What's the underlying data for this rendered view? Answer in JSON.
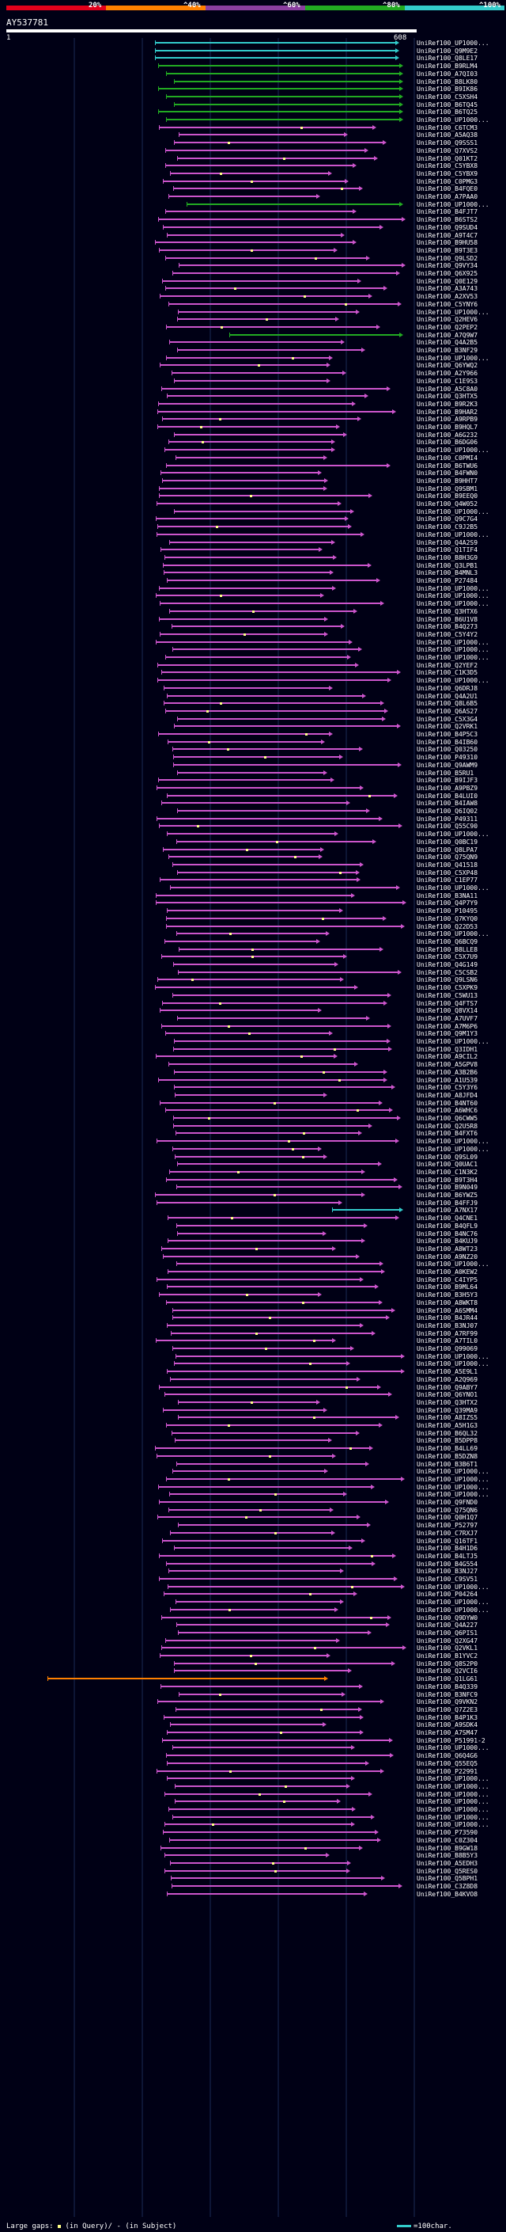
{
  "legend": {
    "ticks": [
      "20%",
      "^40%",
      "^60%",
      "^80%",
      "^100%"
    ],
    "colors": [
      "#e3001b",
      "#ff8000",
      "#8b3fa0",
      "#22aa22",
      "#33cccc"
    ]
  },
  "query": {
    "id": "AY537781",
    "start": "1",
    "end": "608"
  },
  "colors": {
    "cyan": "#33cccc",
    "green": "#22aa22",
    "magenta": "#cc55cc",
    "orange": "#ff8000",
    "gap": "#ffff88"
  },
  "hits": [
    "UniRef100_UP1000...",
    "UniRef100_Q9M9E2",
    "UniRef100_Q8LE17",
    "UniRef100_B9RLM4",
    "UniRef100_A7QI03",
    "UniRef100_B8LK80",
    "UniRef100_B9IK86",
    "UniRef100_C5XSH4",
    "UniRef100_B6TQ45",
    "UniRef100_B6TQ25",
    "UniRef100_UP1000...",
    "UniRef100_C6TCM3",
    "UniRef100_A5AQ38",
    "UniRef100_Q9SSS1",
    "UniRef100_Q7XVS2",
    "UniRef100_Q01KT2",
    "UniRef100_C5YBX8",
    "UniRef100_C5YBX9",
    "UniRef100_C0PMG3",
    "UniRef100_B4FQE0",
    "UniRef100_A7PAA0",
    "UniRef100_UP1000...",
    "UniRef100_B4FJT7",
    "UniRef100_B6STS2",
    "UniRef100_Q9SUD4",
    "UniRef100_A9T4C7",
    "UniRef100_B9HU58",
    "UniRef100_B9T3E3",
    "UniRef100_Q9LSD2",
    "UniRef100_Q9VY34",
    "UniRef100_Q6X925",
    "UniRef100_Q0E129",
    "UniRef100_A3A743",
    "UniRef100_A2XV53",
    "UniRef100_C5YNY6",
    "UniRef100_UP1000...",
    "UniRef100_Q2HEV6",
    "UniRef100_Q2PEP2",
    "UniRef100_A7Q9W7",
    "UniRef100_Q4A2B5",
    "UniRef100_B3NF29",
    "UniRef100_UP1000...",
    "UniRef100_Q6YWQ2",
    "UniRef100_A2Y966",
    "UniRef100_C1E9S3",
    "UniRef100_A5C8A0",
    "UniRef100_Q3HTX5",
    "UniRef100_B9R2K3",
    "UniRef100_B9HAR2",
    "UniRef100_A9RPB9",
    "UniRef100_B9HQL7",
    "UniRef100_A6G232",
    "UniRef100_B6DG06",
    "UniRef100_UP1000...",
    "UniRef100_C0PMI4",
    "UniRef100_B6TWU6",
    "UniRef100_B4FWN0",
    "UniRef100_B9HHT7",
    "UniRef100_Q9SBM1",
    "UniRef100_B9EEQ0",
    "UniRef100_Q4W052",
    "UniRef100_UP1000...",
    "UniRef100_Q9C7G4",
    "UniRef100_C9J2B5",
    "UniRef100_UP1000...",
    "UniRef100_Q4A2S9",
    "UniRef100_Q1TIF4",
    "UniRef100_B8H3G9",
    "UniRef100_Q3LPB1",
    "UniRef100_B4MNL3",
    "UniRef100_P27484",
    "UniRef100_UP1000...",
    "UniRef100_UP1000...",
    "UniRef100_UP1000...",
    "UniRef100_Q3HTX6",
    "UniRef100_B6U1V8",
    "UniRef100_B4Q273",
    "UniRef100_C5Y4Y2",
    "UniRef100_UP1000...",
    "UniRef100_UP1000...",
    "UniRef100_UP1000...",
    "UniRef100_Q2YEF2",
    "UniRef100_C1K3D5",
    "UniRef100_UP1000...",
    "UniRef100_Q6DRJ8",
    "UniRef100_Q4A2U1",
    "UniRef100_Q8L6B5",
    "UniRef100_Q6AS27",
    "UniRef100_C5X3G4",
    "UniRef100_Q2VRK1",
    "UniRef100_B4P5C3",
    "UniRef100_B4IB60",
    "UniRef100_Q03250",
    "UniRef100_P49310",
    "UniRef100_Q9AWM9",
    "UniRef100_B5RU1",
    "UniRef100_B9IJF3",
    "UniRef100_A9PBZ9",
    "UniRef100_B4LUI0",
    "UniRef100_B4IAW8",
    "UniRef100_Q6IQ02",
    "UniRef100_P49311",
    "UniRef100_Q55C90",
    "UniRef100_UP1000...",
    "UniRef100_Q0BC19",
    "UniRef100_Q8LPA7",
    "UniRef100_Q75QN9",
    "UniRef100_Q41518",
    "UniRef100_C5XP48",
    "UniRef100_C1EP77",
    "UniRef100_UP1000...",
    "UniRef100_B3NA11",
    "UniRef100_Q4P7Y9",
    "UniRef100_P10495",
    "UniRef100_Q7KYQ0",
    "UniRef100_Q22D53",
    "UniRef100_UP1000...",
    "UniRef100_Q6BCQ9",
    "UniRef100_B8LLE8",
    "UniRef100_C5X7U9",
    "UniRef100_Q4G149",
    "UniRef100_C5CSB2",
    "UniRef100_Q9LSN6",
    "UniRef100_C5XPK9",
    "UniRef100_C5WU13",
    "UniRef100_Q4FTS7",
    "UniRef100_Q8VX14",
    "UniRef100_A7UVF7",
    "UniRef100_A7M6P6",
    "UniRef100_Q9M1Y3",
    "UniRef100_UP1000...",
    "UniRef100_Q3IDH1",
    "UniRef100_A9CIL2",
    "UniRef100_A5GPV8",
    "UniRef100_A3B2B6",
    "UniRef100_A1U539",
    "UniRef100_C5Y3Y6",
    "UniRef100_A8JFD4",
    "UniRef100_B4NT60",
    "UniRef100_A6WHC6",
    "UniRef100_Q6CWW5",
    "UniRef100_Q2U5R8",
    "UniRef100_B4FXT6",
    "UniRef100_UP1000...",
    "UniRef100_UP1000...",
    "UniRef100_Q9SL09",
    "UniRef100_Q0UAC1",
    "UniRef100_C1N3K2",
    "UniRef100_B9T3H4",
    "UniRef100_B9N049",
    "UniRef100_B6YWZ5",
    "UniRef100_B4FFJ9",
    "UniRef100_A7NX17",
    "UniRef100_Q4CNE1",
    "UniRef100_B4QFL9",
    "UniRef100_B4NC76",
    "UniRef100_B4KUJ9",
    "UniRef100_A8WT23",
    "UniRef100_A9NZ20",
    "UniRef100_UP1000...",
    "UniRef100_A0KEW2",
    "UniRef100_C4IYP5",
    "UniRef100_B9ML64",
    "UniRef100_B3H5Y3",
    "UniRef100_A8WKT8",
    "UniRef100_A6SMM4",
    "UniRef100_B4JR44",
    "UniRef100_B3NJ07",
    "UniRef100_A7RF99",
    "UniRef100_A7TIL0",
    "UniRef100_Q99069",
    "UniRef100_UP1000...",
    "UniRef100_UP1000...",
    "UniRef100_A5E9L1",
    "UniRef100_A2Q969",
    "UniRef100_Q9ABY7",
    "UniRef100_Q6YNO1",
    "UniRef100_Q3HTX2",
    "UniRef100_Q39MA9",
    "UniRef100_A8IZS5",
    "UniRef100_A5H1G3",
    "UniRef100_B6QL32",
    "UniRef100_B5DPP8",
    "UniRef100_B4LL69",
    "UniRef100_B5DZN8",
    "UniRef100_B3B6T1",
    "UniRef100_UP1000...",
    "UniRef100_UP1000...",
    "UniRef100_UP1000...",
    "UniRef100_UP1000...",
    "UniRef100_Q9FND0",
    "UniRef100_Q75QN6",
    "UniRef100_Q0H1Q7",
    "UniRef100_P52797",
    "UniRef100_C7RXJ7",
    "UniRef100_Q16TF1",
    "UniRef100_B4H1D6",
    "UniRef100_B4LTJ5",
    "UniRef100_B4G554",
    "UniRef100_B3NJ27",
    "UniRef100_C9SV51",
    "UniRef100_UP1000...",
    "UniRef100_P04264",
    "UniRef100_UP1000...",
    "UniRef100_UP1000...",
    "UniRef100_Q9DYW0",
    "UniRef100_Q4A227",
    "UniRef100_Q6PIS1",
    "UniRef100_Q2XG47",
    "UniRef100_Q2VKL1",
    "UniRef100_B1YVC2",
    "UniRef100_Q8S2P0",
    "UniRef100_Q2VCI6",
    "UniRef100_Q1LG61",
    "UniRef100_B4Q339",
    "UniRef100_B3NFC9",
    "UniRef100_Q9VKN2",
    "UniRef100_Q7Z2E3",
    "UniRef100_B4P1K3",
    "UniRef100_A9SDK4",
    "UniRef100_A7SM47",
    "UniRef100_P51991-2",
    "UniRef100_UP1000...",
    "UniRef100_Q6Q4G6",
    "UniRef100_Q55EQ5",
    "UniRef100_P22991",
    "UniRef100_UP1000...",
    "UniRef100_UP1000...",
    "UniRef100_UP1000...",
    "UniRef100_UP1000...",
    "UniRef100_UP1000...",
    "UniRef100_UP1000...",
    "UniRef100_UP1000...",
    "UniRef100_P73590",
    "UniRef100_C0Z304",
    "UniRef100_B9GW18",
    "UniRef100_B8B5Y3",
    "UniRef100_A5EDH3",
    "UniRef100_Q5RES0",
    "UniRef100_Q5BPH1",
    "UniRef100_C3Z8D8",
    "UniRef100_B4KVO8"
  ],
  "footer": {
    "prefix": "Large gaps:",
    "in_query": "(in Query)/",
    "in_subject": "- (in Subject)",
    "scale": "=100char."
  }
}
